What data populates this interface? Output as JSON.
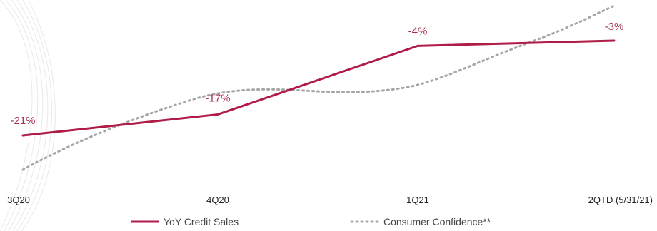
{
  "chart_data": {
    "type": "line",
    "categories": [
      "3Q20",
      "4Q20",
      "1Q21",
      "2QTD (5/31/21)"
    ],
    "series": [
      {
        "name": "YoY Credit Sales",
        "values": [
          -21,
          -17,
          -4,
          -3
        ],
        "labels": [
          "-21%",
          "-17%",
          "-4%",
          "-3%"
        ],
        "color": "#b01c48",
        "style": "solid"
      },
      {
        "name": "Consumer Confidence**",
        "values": [
          null,
          null,
          null,
          null
        ],
        "color": "#a6a6a6",
        "style": "dotted"
      }
    ],
    "title": "",
    "xlabel": "",
    "ylabel": "",
    "ylim": [
      -25,
      0
    ],
    "grid": false,
    "legend": "bottom-center"
  }
}
